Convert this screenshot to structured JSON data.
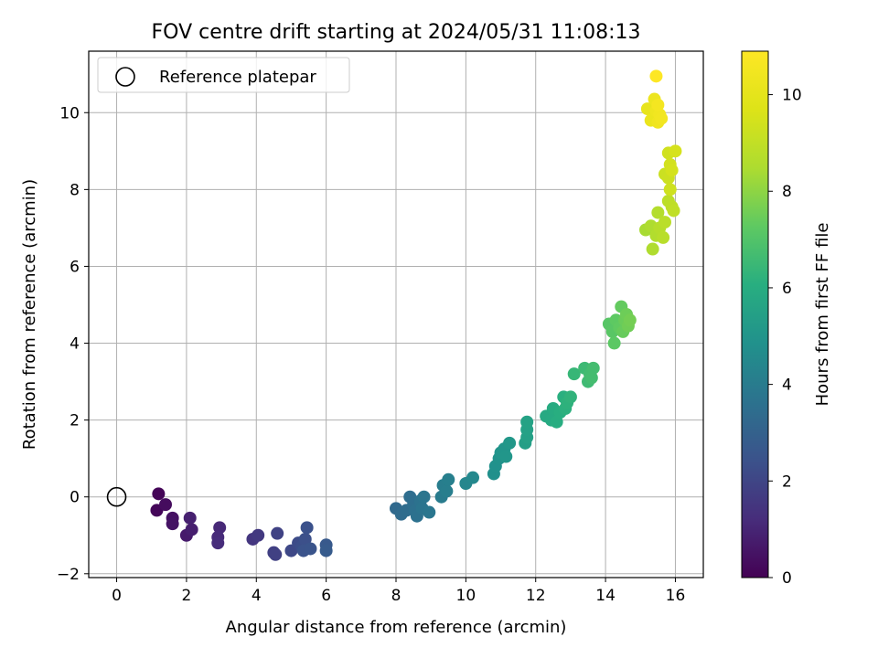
{
  "chart_data": {
    "type": "scatter",
    "title": "FOV centre drift starting at 2024/05/31 11:08:13",
    "xlabel": "Angular distance from reference (arcmin)",
    "ylabel": "Rotation from reference (arcmin)",
    "xlim": [
      -0.8,
      16.8
    ],
    "ylim": [
      -2.1,
      11.6
    ],
    "xticks": [
      0,
      2,
      4,
      6,
      8,
      10,
      12,
      14,
      16
    ],
    "yticks": [
      -2,
      0,
      2,
      4,
      6,
      8,
      10
    ],
    "grid": true,
    "legend": {
      "placement": "top-left",
      "label": "Reference platepar"
    },
    "reference_point": {
      "x": 0,
      "y": 0
    },
    "colorbar": {
      "label": "Hours from first FF file",
      "colormap": "viridis",
      "range": [
        0,
        10.9
      ],
      "ticks": [
        0,
        2,
        4,
        6,
        8,
        10
      ]
    },
    "points": [
      {
        "x": 1.2,
        "y": 0.08,
        "t": 0.1
      },
      {
        "x": 1.15,
        "y": -0.35,
        "t": 0.15
      },
      {
        "x": 1.4,
        "y": -0.2,
        "t": 0.3
      },
      {
        "x": 1.6,
        "y": -0.55,
        "t": 0.45
      },
      {
        "x": 1.6,
        "y": -0.7,
        "t": 0.5
      },
      {
        "x": 2.0,
        "y": -1.0,
        "t": 0.7
      },
      {
        "x": 2.15,
        "y": -0.85,
        "t": 0.8
      },
      {
        "x": 2.1,
        "y": -0.55,
        "t": 0.85
      },
      {
        "x": 2.95,
        "y": -0.8,
        "t": 1.1
      },
      {
        "x": 2.9,
        "y": -1.05,
        "t": 1.15
      },
      {
        "x": 2.9,
        "y": -1.2,
        "t": 1.2
      },
      {
        "x": 3.9,
        "y": -1.1,
        "t": 1.5
      },
      {
        "x": 4.05,
        "y": -1.0,
        "t": 1.6
      },
      {
        "x": 4.5,
        "y": -1.45,
        "t": 1.8
      },
      {
        "x": 4.55,
        "y": -1.5,
        "t": 1.85
      },
      {
        "x": 4.6,
        "y": -0.95,
        "t": 1.9
      },
      {
        "x": 5.0,
        "y": -1.4,
        "t": 2.1
      },
      {
        "x": 5.2,
        "y": -1.2,
        "t": 2.2
      },
      {
        "x": 5.3,
        "y": -1.3,
        "t": 2.3
      },
      {
        "x": 5.4,
        "y": -1.1,
        "t": 2.35
      },
      {
        "x": 5.45,
        "y": -0.8,
        "t": 2.4
      },
      {
        "x": 5.35,
        "y": -1.4,
        "t": 2.45
      },
      {
        "x": 5.55,
        "y": -1.35,
        "t": 2.5
      },
      {
        "x": 6.0,
        "y": -1.25,
        "t": 2.7
      },
      {
        "x": 6.0,
        "y": -1.4,
        "t": 2.75
      },
      {
        "x": 8.0,
        "y": -0.3,
        "t": 3.3
      },
      {
        "x": 8.15,
        "y": -0.45,
        "t": 3.35
      },
      {
        "x": 8.3,
        "y": -0.35,
        "t": 3.4
      },
      {
        "x": 8.4,
        "y": 0.0,
        "t": 3.45
      },
      {
        "x": 8.5,
        "y": -0.2,
        "t": 3.5
      },
      {
        "x": 8.55,
        "y": -0.35,
        "t": 3.55
      },
      {
        "x": 8.6,
        "y": -0.5,
        "t": 3.6
      },
      {
        "x": 8.7,
        "y": -0.1,
        "t": 3.65
      },
      {
        "x": 8.75,
        "y": -0.3,
        "t": 3.7
      },
      {
        "x": 8.8,
        "y": 0.0,
        "t": 3.75
      },
      {
        "x": 8.95,
        "y": -0.4,
        "t": 3.8
      },
      {
        "x": 9.3,
        "y": 0.0,
        "t": 4.0
      },
      {
        "x": 9.35,
        "y": 0.3,
        "t": 4.05
      },
      {
        "x": 9.45,
        "y": 0.15,
        "t": 4.1
      },
      {
        "x": 9.5,
        "y": 0.45,
        "t": 4.15
      },
      {
        "x": 10.0,
        "y": 0.35,
        "t": 4.4
      },
      {
        "x": 10.2,
        "y": 0.5,
        "t": 4.5
      },
      {
        "x": 10.8,
        "y": 0.6,
        "t": 4.8
      },
      {
        "x": 10.85,
        "y": 0.8,
        "t": 4.85
      },
      {
        "x": 10.95,
        "y": 1.0,
        "t": 4.9
      },
      {
        "x": 11.0,
        "y": 1.15,
        "t": 4.95
      },
      {
        "x": 11.1,
        "y": 1.25,
        "t": 5.0
      },
      {
        "x": 11.15,
        "y": 1.05,
        "t": 5.05
      },
      {
        "x": 11.25,
        "y": 1.4,
        "t": 5.1
      },
      {
        "x": 11.7,
        "y": 1.4,
        "t": 5.4
      },
      {
        "x": 11.75,
        "y": 1.55,
        "t": 5.45
      },
      {
        "x": 11.75,
        "y": 1.75,
        "t": 5.5
      },
      {
        "x": 11.75,
        "y": 1.95,
        "t": 5.55
      },
      {
        "x": 12.3,
        "y": 2.1,
        "t": 5.85
      },
      {
        "x": 12.45,
        "y": 2.0,
        "t": 5.9
      },
      {
        "x": 12.5,
        "y": 2.3,
        "t": 5.95
      },
      {
        "x": 12.6,
        "y": 1.95,
        "t": 6.0
      },
      {
        "x": 12.7,
        "y": 2.2,
        "t": 6.05
      },
      {
        "x": 12.8,
        "y": 2.6,
        "t": 6.1
      },
      {
        "x": 12.85,
        "y": 2.3,
        "t": 6.15
      },
      {
        "x": 12.9,
        "y": 2.45,
        "t": 6.2
      },
      {
        "x": 13.0,
        "y": 2.6,
        "t": 6.25
      },
      {
        "x": 13.1,
        "y": 3.2,
        "t": 6.4
      },
      {
        "x": 13.4,
        "y": 3.35,
        "t": 6.55
      },
      {
        "x": 13.5,
        "y": 3.0,
        "t": 6.6
      },
      {
        "x": 13.55,
        "y": 3.2,
        "t": 6.65
      },
      {
        "x": 13.65,
        "y": 3.35,
        "t": 6.7
      },
      {
        "x": 13.6,
        "y": 3.1,
        "t": 6.7
      },
      {
        "x": 14.1,
        "y": 4.5,
        "t": 7.1
      },
      {
        "x": 14.2,
        "y": 4.3,
        "t": 7.15
      },
      {
        "x": 14.25,
        "y": 4.0,
        "t": 7.2
      },
      {
        "x": 14.3,
        "y": 4.6,
        "t": 7.25
      },
      {
        "x": 14.4,
        "y": 4.4,
        "t": 7.3
      },
      {
        "x": 14.45,
        "y": 4.95,
        "t": 7.35
      },
      {
        "x": 14.5,
        "y": 4.3,
        "t": 7.4
      },
      {
        "x": 14.55,
        "y": 4.6,
        "t": 7.45
      },
      {
        "x": 14.6,
        "y": 4.75,
        "t": 7.5
      },
      {
        "x": 14.65,
        "y": 4.45,
        "t": 7.55
      },
      {
        "x": 14.7,
        "y": 4.6,
        "t": 7.6
      },
      {
        "x": 15.15,
        "y": 6.95,
        "t": 8.4
      },
      {
        "x": 15.3,
        "y": 7.05,
        "t": 8.5
      },
      {
        "x": 15.35,
        "y": 6.45,
        "t": 8.55
      },
      {
        "x": 15.45,
        "y": 6.8,
        "t": 8.6
      },
      {
        "x": 15.5,
        "y": 7.4,
        "t": 8.65
      },
      {
        "x": 15.55,
        "y": 7.0,
        "t": 8.7
      },
      {
        "x": 15.65,
        "y": 6.75,
        "t": 8.75
      },
      {
        "x": 15.7,
        "y": 7.15,
        "t": 8.8
      },
      {
        "x": 15.8,
        "y": 7.7,
        "t": 8.85
      },
      {
        "x": 15.9,
        "y": 7.55,
        "t": 8.9
      },
      {
        "x": 15.95,
        "y": 7.45,
        "t": 8.95
      },
      {
        "x": 15.7,
        "y": 8.4,
        "t": 9.2
      },
      {
        "x": 15.8,
        "y": 8.3,
        "t": 9.25
      },
      {
        "x": 15.85,
        "y": 8.0,
        "t": 9.3
      },
      {
        "x": 15.8,
        "y": 8.95,
        "t": 9.35
      },
      {
        "x": 15.85,
        "y": 8.65,
        "t": 9.4
      },
      {
        "x": 15.9,
        "y": 8.5,
        "t": 9.45
      },
      {
        "x": 16.0,
        "y": 9.0,
        "t": 9.5
      },
      {
        "x": 15.2,
        "y": 10.1,
        "t": 10.1
      },
      {
        "x": 15.3,
        "y": 9.8,
        "t": 10.2
      },
      {
        "x": 15.4,
        "y": 10.35,
        "t": 10.3
      },
      {
        "x": 15.45,
        "y": 10.05,
        "t": 10.35
      },
      {
        "x": 15.5,
        "y": 9.75,
        "t": 10.4
      },
      {
        "x": 15.55,
        "y": 9.95,
        "t": 10.45
      },
      {
        "x": 15.6,
        "y": 9.85,
        "t": 10.5
      },
      {
        "x": 15.5,
        "y": 10.2,
        "t": 10.55
      },
      {
        "x": 15.45,
        "y": 10.95,
        "t": 10.9
      }
    ]
  }
}
